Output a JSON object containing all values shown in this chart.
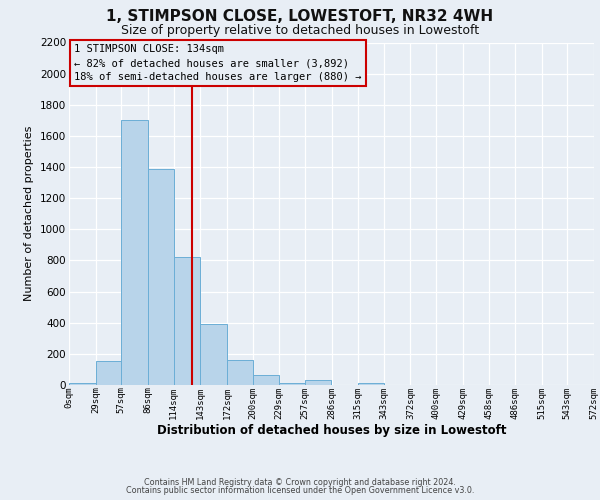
{
  "title": "1, STIMPSON CLOSE, LOWESTOFT, NR32 4WH",
  "subtitle": "Size of property relative to detached houses in Lowestoft",
  "xlabel": "Distribution of detached houses by size in Lowestoft",
  "ylabel": "Number of detached properties",
  "bar_color": "#b8d4ea",
  "bar_edge_color": "#6baed6",
  "background_color": "#e8eef5",
  "grid_color": "#ffffff",
  "annotation_box_edge": "#cc0000",
  "vline_color": "#cc0000",
  "bin_edges": [
    0,
    29,
    57,
    86,
    114,
    143,
    172,
    200,
    229,
    257,
    286,
    315,
    343,
    372,
    400,
    429,
    458,
    486,
    515,
    543,
    572
  ],
  "bar_heights": [
    10,
    155,
    1700,
    1390,
    820,
    390,
    160,
    65,
    15,
    30,
    0,
    15,
    0,
    0,
    0,
    0,
    0,
    0,
    0,
    0
  ],
  "vline_x": 134,
  "annotation_title": "1 STIMPSON CLOSE: 134sqm",
  "annotation_line1": "← 82% of detached houses are smaller (3,892)",
  "annotation_line2": "18% of semi-detached houses are larger (880) →",
  "ylim": [
    0,
    2200
  ],
  "yticks": [
    0,
    200,
    400,
    600,
    800,
    1000,
    1200,
    1400,
    1600,
    1800,
    2000,
    2200
  ],
  "footer1": "Contains HM Land Registry data © Crown copyright and database right 2024.",
  "footer2": "Contains public sector information licensed under the Open Government Licence v3.0.",
  "tick_labels": [
    "0sqm",
    "29sqm",
    "57sqm",
    "86sqm",
    "114sqm",
    "143sqm",
    "172sqm",
    "200sqm",
    "229sqm",
    "257sqm",
    "286sqm",
    "315sqm",
    "343sqm",
    "372sqm",
    "400sqm",
    "429sqm",
    "458sqm",
    "486sqm",
    "515sqm",
    "543sqm",
    "572sqm"
  ],
  "title_fontsize": 11,
  "subtitle_fontsize": 9
}
